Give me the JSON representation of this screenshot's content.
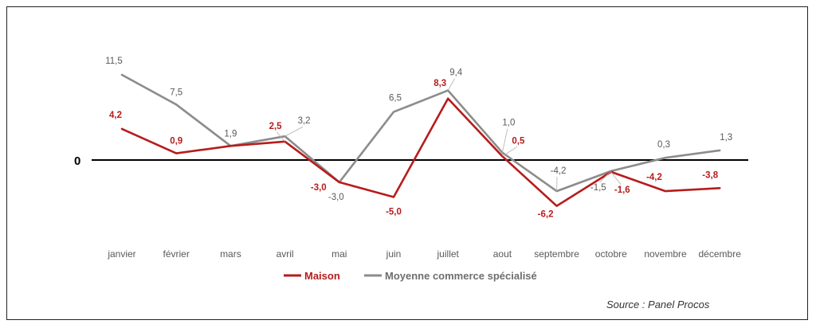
{
  "chart_data": {
    "type": "line",
    "categories": [
      "janvier",
      "février",
      "mars",
      "avril",
      "mai",
      "juin",
      "juillet",
      "aout",
      "septembre",
      "octobre",
      "novembre",
      "décembre"
    ],
    "series": [
      {
        "name": "Maison",
        "color": "#b71c1c",
        "values": [
          4.2,
          0.9,
          1.9,
          2.5,
          -3.0,
          -5.0,
          8.3,
          0.5,
          -6.2,
          -1.6,
          -4.2,
          -3.8
        ],
        "labels": [
          "4,2",
          "0,9",
          "",
          "2,5",
          "-3,0",
          "-5,0",
          "8,3",
          "0,5",
          "-6,2",
          "-1,6",
          "-4,2",
          "-3,8"
        ]
      },
      {
        "name": "Moyenne commerce spécialisé",
        "color": "#8c8c8c",
        "values": [
          11.5,
          7.5,
          1.9,
          3.2,
          -3.0,
          6.5,
          9.4,
          1.0,
          -4.2,
          -1.5,
          0.3,
          1.3
        ],
        "labels": [
          "11,5",
          "7,5",
          "1,9",
          "3,2",
          "-3,0",
          "6,5",
          "9,4",
          "1,0",
          "-4,2",
          "-1,5",
          "0,3",
          "1,3"
        ]
      }
    ],
    "zero_label": "0",
    "ylim": [
      -7,
      12
    ],
    "grid": false,
    "legend": "bottom-center",
    "source": "Source : Panel Procos"
  }
}
